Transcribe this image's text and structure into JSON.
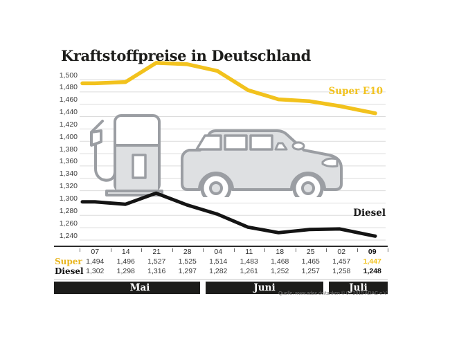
{
  "title": "Kraftstoffpreise in Deutschland",
  "legend": {
    "super_e10": "Super E10",
    "diesel": "Diesel"
  },
  "chart_data": {
    "type": "line",
    "title": "Kraftstoffpreise in Deutschland",
    "x": [
      "07",
      "14",
      "21",
      "28",
      "04",
      "11",
      "18",
      "25",
      "02",
      "09"
    ],
    "month_groups": [
      {
        "label": "Mai",
        "count": 4
      },
      {
        "label": "Juni",
        "count": 4
      },
      {
        "label": "Juli",
        "count": 2
      }
    ],
    "series": [
      {
        "name": "Super E10",
        "color": "#F2C21D",
        "values": [
          1.494,
          1.496,
          1.527,
          1.525,
          1.514,
          1.483,
          1.468,
          1.465,
          1.457,
          1.447
        ]
      },
      {
        "name": "Diesel",
        "color": "#141414",
        "values": [
          1.302,
          1.298,
          1.316,
          1.297,
          1.282,
          1.261,
          1.252,
          1.257,
          1.258,
          1.248
        ]
      }
    ],
    "ylim": [
      1.24,
      1.5
    ],
    "ytick_step": 0.02,
    "ytick_labels": [
      "1,500",
      "1,480",
      "1,460",
      "1,440",
      "1,420",
      "1,400",
      "1,380",
      "1,360",
      "1,340",
      "1,320",
      "1,300",
      "1,280",
      "1,260",
      "1,240"
    ],
    "grid": true,
    "legend_position": "inline-right"
  },
  "table": {
    "row_labels": {
      "super": "Super",
      "diesel": "Diesel"
    },
    "dates": [
      "07",
      "14",
      "21",
      "28",
      "04",
      "11",
      "18",
      "25",
      "02",
      "09"
    ],
    "super_values": [
      "1,494",
      "1,496",
      "1,527",
      "1,525",
      "1,514",
      "1,483",
      "1,468",
      "1,465",
      "1,457",
      "1,447"
    ],
    "diesel_values": [
      "1,302",
      "1,298",
      "1,316",
      "1,297",
      "1,282",
      "1,261",
      "1,252",
      "1,257",
      "1,258",
      "1,248"
    ],
    "months": [
      "Mai",
      "Juni",
      "Juli"
    ]
  },
  "source": "Quelle: www.adac.de/tanken   © 07.2019   ADAC e.V.",
  "icons": {
    "pump": "fuel-pump-icon",
    "car": "car-icon"
  },
  "colors": {
    "accent_yellow": "#F2C21D",
    "line_black": "#141414",
    "band_black": "#1d1d1b",
    "grid": "#dbdbdb",
    "icon_fill": "#DEE0E2",
    "icon_stroke": "#9B9EA3"
  }
}
